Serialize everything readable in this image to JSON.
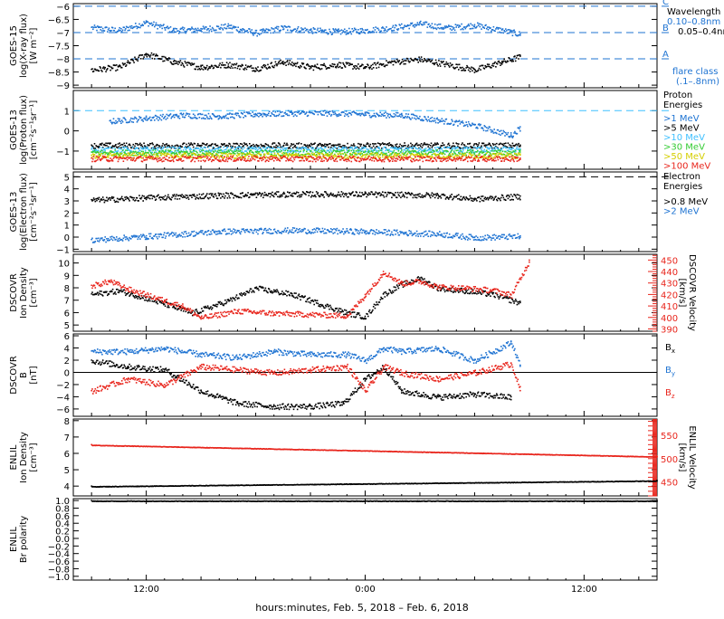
{
  "x_axis": {
    "caption": "hours:minutes, Feb.  5, 2018 – Feb.  6, 2018",
    "hours_range": [
      8,
      40
    ],
    "ticks": [
      {
        "label": "12:00",
        "hour": 12
      },
      {
        "label": "0:00",
        "hour": 24
      },
      {
        "label": "12:00",
        "hour": 36
      }
    ]
  },
  "colors": {
    "black": "#000000",
    "blue": "#1e73d2",
    "cyan": "#3fc0ff",
    "green": "#33cc33",
    "yellow": "#d4cf00",
    "orange": "#ff9900",
    "red": "#e8251c"
  },
  "chart_data": [
    {
      "id": "xray",
      "type": "scatter",
      "ylabel": "GOES-15",
      "ylabel2": "log(X-ray flux)",
      "unit": "[W m⁻²]",
      "ylim": [
        -9.1,
        -5.9
      ],
      "ticks": [
        -6.0,
        -6.5,
        -7.0,
        -7.5,
        -8.0,
        -8.5,
        -9.0
      ],
      "reference_lines": [
        {
          "y": -6.0,
          "label": "C"
        },
        {
          "y": -7.0,
          "label": "B"
        },
        {
          "y": -8.0,
          "label": "A"
        }
      ],
      "legend_title": "Wavelength",
      "legend": [
        "0.10–0.8nm",
        "0.05–0.4nm"
      ],
      "legend_note": [
        "flare class",
        "(.1–.8nm)"
      ],
      "series": [
        {
          "name": "0.10–0.8nm",
          "color": "blue",
          "x": [
            9,
            10.5,
            12,
            13.5,
            15,
            16.5,
            18,
            19.5,
            21,
            22.5,
            24,
            25.5,
            27,
            28.5,
            30,
            31.5,
            32.5
          ],
          "y": [
            -6.8,
            -6.9,
            -6.6,
            -6.9,
            -6.85,
            -6.75,
            -7.0,
            -6.8,
            -6.9,
            -6.95,
            -6.9,
            -6.8,
            -6.65,
            -6.8,
            -6.7,
            -6.9,
            -7.05
          ]
        },
        {
          "name": "0.05–0.4nm",
          "color": "black",
          "x": [
            9,
            10.5,
            12,
            13.5,
            15,
            16.5,
            18,
            19.5,
            21,
            22.5,
            24,
            25.5,
            27,
            28.5,
            30,
            31.5,
            32.5
          ],
          "y": [
            -8.4,
            -8.3,
            -7.8,
            -8.1,
            -8.3,
            -8.2,
            -8.35,
            -8.1,
            -8.3,
            -8.2,
            -8.3,
            -8.1,
            -8.0,
            -8.2,
            -8.4,
            -8.1,
            -7.9
          ]
        }
      ]
    },
    {
      "id": "proton",
      "type": "scatter",
      "ylabel": "GOES-13",
      "ylabel2": "log(Proton flux)",
      "unit": "[cm⁻²s⁻¹sr⁻¹]",
      "ylim": [
        -1.9,
        2.0
      ],
      "ticks": [
        1,
        0,
        -1
      ],
      "reference_lines": [
        {
          "y": 1.0,
          "label": ""
        }
      ],
      "legend_title": "Proton Energies",
      "legend": [
        ">1 MeV",
        ">5 MeV",
        ">10 MeV",
        ">30 MeV",
        ">50 MeV",
        ">100 MeV"
      ],
      "series": [
        {
          "name": ">1 MeV",
          "color": "blue",
          "x": [
            10,
            12,
            14,
            16,
            18,
            20,
            22,
            24,
            26,
            28,
            30,
            32,
            32.5
          ],
          "y": [
            0.5,
            0.65,
            0.8,
            0.75,
            0.85,
            0.9,
            0.9,
            0.85,
            0.8,
            0.55,
            0.3,
            -0.2,
            0.2
          ]
        },
        {
          "name": ">5 MeV",
          "color": "black",
          "x": [
            9,
            32.5
          ],
          "y": [
            -0.7,
            -0.7
          ]
        },
        {
          "name": ">10 MeV",
          "color": "cyan",
          "x": [
            9,
            32.5
          ],
          "y": [
            -0.9,
            -0.9
          ]
        },
        {
          "name": ">30 MeV",
          "color": "green",
          "x": [
            9,
            32.5
          ],
          "y": [
            -1.05,
            -1.05
          ]
        },
        {
          "name": ">50 MeV",
          "color": "yellow",
          "x": [
            9,
            32.5
          ],
          "y": [
            -1.2,
            -1.2
          ]
        },
        {
          "name": ">100 MeV",
          "color": "red",
          "x": [
            9,
            32.5
          ],
          "y": [
            -1.35,
            -1.35
          ]
        }
      ]
    },
    {
      "id": "electron",
      "type": "scatter",
      "ylabel": "GOES-13",
      "ylabel2": "log(Electron flux)",
      "unit": "[cm⁻²s⁻¹sr⁻¹]",
      "ylim": [
        -1.2,
        5.4
      ],
      "ticks": [
        5,
        4,
        3,
        2,
        1,
        0,
        -1
      ],
      "reference_lines": [
        {
          "y": 5.0,
          "label": ""
        }
      ],
      "legend_title": "Electron Energies",
      "legend": [
        ">0.8 MeV",
        ">2 MeV"
      ],
      "series": [
        {
          "name": ">0.8 MeV",
          "color": "black",
          "x": [
            9,
            12,
            16,
            20,
            24,
            28,
            30,
            32.5
          ],
          "y": [
            3.1,
            3.3,
            3.5,
            3.6,
            3.6,
            3.5,
            3.2,
            3.4
          ]
        },
        {
          "name": ">2 MeV",
          "color": "blue",
          "x": [
            9,
            12,
            16,
            20,
            24,
            28,
            30,
            32.5
          ],
          "y": [
            -0.2,
            0.1,
            0.5,
            0.6,
            0.5,
            0.3,
            0.0,
            0.1
          ]
        }
      ]
    },
    {
      "id": "density",
      "type": "scatter",
      "ylabel": "DSCOVR",
      "ylabel2": "Ion Density",
      "unit": "[cm⁻³]",
      "ylim": [
        4.5,
        10.7
      ],
      "ticks": [
        10,
        9,
        8,
        7,
        6,
        5
      ],
      "right_axis": {
        "label": "DSCOVR Velocity",
        "unit": "[km/s]",
        "ylim": [
          388,
          455
        ],
        "ticks": [
          450,
          440,
          430,
          420,
          410,
          400,
          390
        ]
      },
      "series": [
        {
          "name": "Ion Density",
          "color": "black",
          "x": [
            9,
            10.5,
            12,
            13.5,
            14.5,
            16.5,
            18,
            20,
            22,
            23,
            24,
            25,
            26,
            27,
            28,
            29.5,
            31,
            32.5
          ],
          "y": [
            7.5,
            7.8,
            7.2,
            6.5,
            6.0,
            7.0,
            8.0,
            7.5,
            6.5,
            6.0,
            5.7,
            7.5,
            8.3,
            8.8,
            8.0,
            7.8,
            7.5,
            6.8
          ]
        },
        {
          "name": "Velocity",
          "color": "red",
          "axis": "right",
          "x": [
            9,
            10,
            11,
            12,
            13,
            14,
            15,
            17,
            19,
            21,
            23,
            24,
            25,
            26,
            27,
            28,
            29.5,
            31,
            32,
            33
          ],
          "y": [
            428,
            432,
            425,
            420,
            415,
            410,
            400,
            406,
            404,
            403,
            402,
            420,
            440,
            430,
            432,
            427,
            426,
            424,
            420,
            450
          ]
        }
      ]
    },
    {
      "id": "bfield",
      "type": "scatter",
      "ylabel": "DSCOVR",
      "ylabel2": "B",
      "unit": "[nT]",
      "ylim": [
        -7.2,
        6.3
      ],
      "ticks": [
        6,
        4,
        2,
        0,
        -2,
        -4,
        -6
      ],
      "zero_line": true,
      "legend": [
        "Bx",
        "By",
        "Bz"
      ],
      "series": [
        {
          "name": "Bx",
          "color": "black",
          "x": [
            9,
            11,
            13,
            15,
            17,
            19,
            21,
            22.8,
            24,
            25,
            26,
            28,
            30,
            32
          ],
          "y": [
            2.0,
            1.0,
            0.5,
            -3.0,
            -5.0,
            -5.5,
            -5.5,
            -5.0,
            -1.0,
            1.0,
            -3.0,
            -4.0,
            -3.5,
            -4.0
          ]
        },
        {
          "name": "By",
          "color": "blue",
          "x": [
            9,
            11,
            13,
            15,
            17,
            19,
            21,
            23,
            24,
            25,
            26,
            28,
            30,
            32,
            32.5
          ],
          "y": [
            3.5,
            3.5,
            4.0,
            3.0,
            2.5,
            3.5,
            3.0,
            3.0,
            2.0,
            4.0,
            3.5,
            4.0,
            2.0,
            5.0,
            1.0
          ]
        },
        {
          "name": "Bz",
          "color": "red",
          "x": [
            9,
            11,
            13,
            15,
            17,
            19,
            21,
            23,
            24,
            25,
            26,
            28,
            30,
            32,
            32.5
          ],
          "y": [
            -3.0,
            -1.0,
            -2.0,
            1.0,
            0.5,
            0.0,
            0.5,
            1.0,
            -3.0,
            1.0,
            0.0,
            -1.0,
            0.0,
            1.5,
            -3.0
          ]
        }
      ]
    },
    {
      "id": "enlil_density",
      "type": "scatter",
      "ylabel": "ENLIL",
      "ylabel2": "Ion Density",
      "unit": "[cm⁻³]",
      "ylim": [
        3.4,
        8.1
      ],
      "ticks": [
        8,
        7,
        6,
        5,
        4
      ],
      "right_axis": {
        "label": "ENLIL Velocity",
        "unit": "[km/s]",
        "ylim": [
          420,
          585
        ],
        "ticks": [
          550,
          500,
          450
        ]
      },
      "series": [
        {
          "name": "Ion Density",
          "color": "black",
          "x": [
            9,
            40
          ],
          "y": [
            4.0,
            4.35
          ]
        },
        {
          "name": "Velocity",
          "color": "red",
          "axis": "right",
          "x": [
            9,
            40
          ],
          "y": [
            530,
            505
          ]
        }
      ]
    },
    {
      "id": "enlil_polarity",
      "type": "scatter",
      "ylabel": "ENLIL",
      "ylabel2": "Br polarity",
      "unit": "",
      "ylim": [
        -1.1,
        1.05
      ],
      "ticks": [
        1.0,
        0.8,
        0.6,
        0.4,
        0.2,
        0.0,
        -0.2,
        -0.4,
        -0.6,
        -0.8,
        -1.0
      ],
      "series": [
        {
          "name": "Br polarity",
          "color": "black",
          "x": [
            9,
            40
          ],
          "y": [
            1.0,
            1.0
          ]
        }
      ]
    }
  ]
}
